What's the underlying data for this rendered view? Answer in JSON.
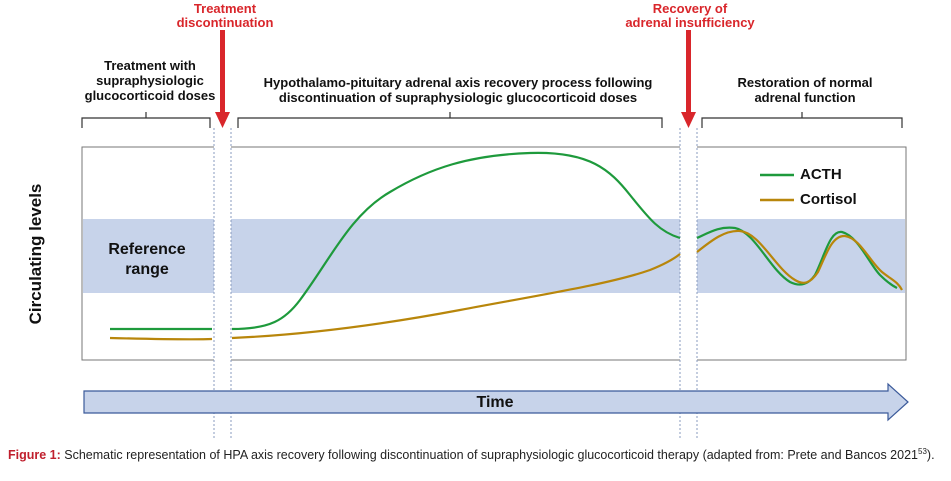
{
  "events": {
    "discontinuation": "Treatment\ndiscontinuation",
    "recovery": "Recovery of\nadrenal insufficiency"
  },
  "phases": {
    "treatment": "Treatment with\nsupraphysiologic\nglucocorticoid doses",
    "recovery_process": "Hypothalamo-pituitary adrenal axis recovery process following\ndiscontinuation of supraphysiologic glucocorticoid doses",
    "restoration": "Restoration of normal\nadrenal function"
  },
  "chart": {
    "ylabel": "Circulating levels",
    "reference_label": "Reference\nrange",
    "time_label": "Time",
    "legend": [
      {
        "name": "ACTH",
        "color": "#1e9a3c"
      },
      {
        "name": "Cortisol",
        "color": "#b8860b"
      }
    ],
    "reference_band_color": "#c7d3ea",
    "arrow_color": "#d9262b"
  },
  "caption": {
    "label": "Figure 1:",
    "text": " Schematic representation of HPA axis recovery following discontinuation of supraphysiologic glucocorticoid therapy (adapted from: Prete and Bancos 2021",
    "ref": "53",
    "end": ")."
  }
}
